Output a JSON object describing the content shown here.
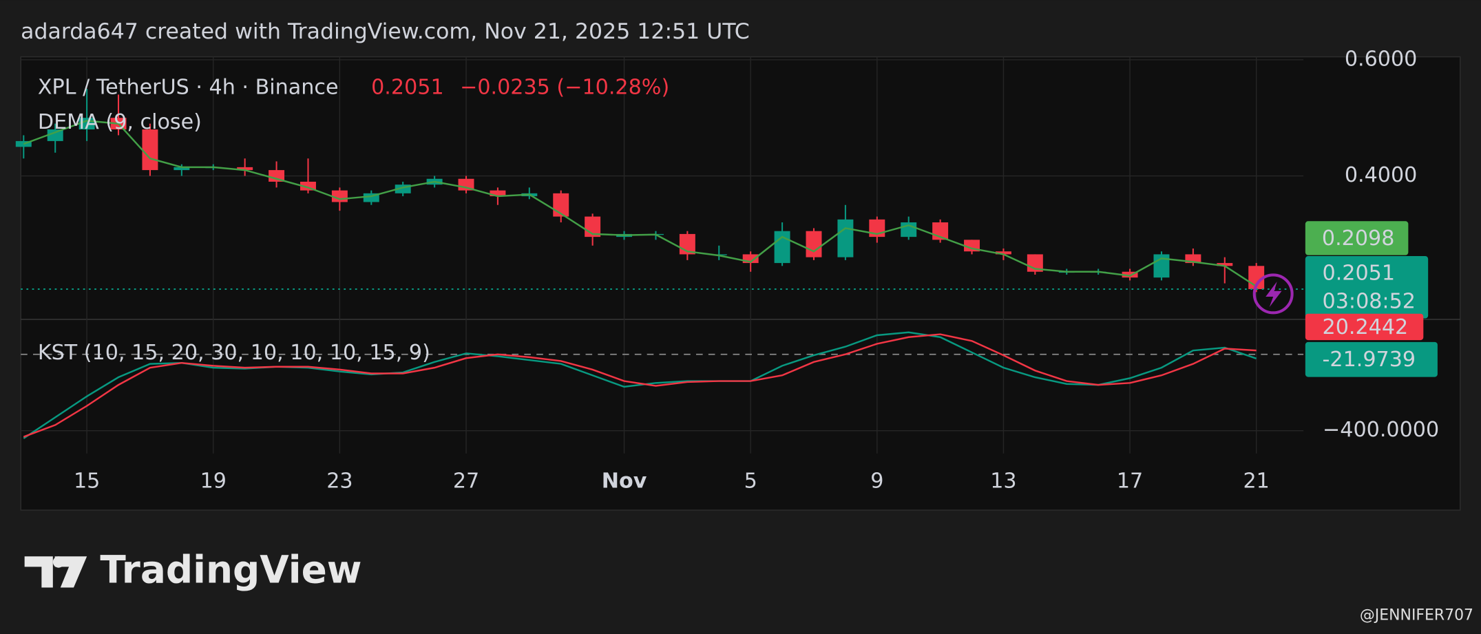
{
  "header": "adarda647 created with TradingView.com, Nov 21, 2025 12:51 UTC",
  "logo": "TradingView",
  "watermark": "@JENNIFER707",
  "chart_data": [
    {
      "type": "candlestick",
      "title": "XPL / TetherUS · 4h · Binance",
      "change": "−0.0235 (−10.28%)",
      "countdown": "03:08:52",
      "x": [
        13,
        14,
        15,
        16,
        17,
        18,
        19,
        20,
        21,
        22,
        23,
        24,
        25,
        26,
        27,
        28,
        29,
        30,
        31,
        32,
        33,
        34,
        35,
        36,
        37,
        38,
        39,
        40,
        41,
        42,
        43,
        44,
        45,
        46,
        47,
        48,
        49,
        50,
        51,
        52
      ],
      "open": [
        0.45,
        0.46,
        0.48,
        0.5,
        0.48,
        0.41,
        0.415,
        0.415,
        0.41,
        0.39,
        0.375,
        0.355,
        0.37,
        0.385,
        0.395,
        0.375,
        0.365,
        0.37,
        0.33,
        0.295,
        0.3,
        0.3,
        0.265,
        0.265,
        0.25,
        0.305,
        0.26,
        0.325,
        0.295,
        0.32,
        0.29,
        0.27,
        0.265,
        0.235,
        0.235,
        0.235,
        0.225,
        0.265,
        0.25,
        0.245
      ],
      "high": [
        0.47,
        0.49,
        0.55,
        0.54,
        0.49,
        0.42,
        0.42,
        0.43,
        0.425,
        0.43,
        0.38,
        0.375,
        0.39,
        0.4,
        0.4,
        0.38,
        0.38,
        0.375,
        0.335,
        0.305,
        0.305,
        0.305,
        0.28,
        0.27,
        0.32,
        0.31,
        0.35,
        0.33,
        0.33,
        0.325,
        0.29,
        0.275,
        0.265,
        0.24,
        0.24,
        0.24,
        0.27,
        0.275,
        0.26,
        0.25
      ],
      "low": [
        0.43,
        0.44,
        0.46,
        0.47,
        0.4,
        0.4,
        0.41,
        0.4,
        0.38,
        0.37,
        0.34,
        0.35,
        0.365,
        0.38,
        0.37,
        0.35,
        0.36,
        0.32,
        0.28,
        0.29,
        0.29,
        0.255,
        0.255,
        0.235,
        0.245,
        0.255,
        0.255,
        0.285,
        0.29,
        0.285,
        0.265,
        0.255,
        0.23,
        0.23,
        0.23,
        0.22,
        0.22,
        0.245,
        0.215,
        0.2
      ],
      "close": [
        0.46,
        0.48,
        0.5,
        0.48,
        0.41,
        0.415,
        0.415,
        0.41,
        0.39,
        0.375,
        0.355,
        0.37,
        0.385,
        0.395,
        0.375,
        0.365,
        0.37,
        0.33,
        0.295,
        0.3,
        0.3,
        0.265,
        0.265,
        0.25,
        0.305,
        0.26,
        0.325,
        0.295,
        0.32,
        0.29,
        0.27,
        0.265,
        0.235,
        0.235,
        0.235,
        0.225,
        0.265,
        0.25,
        0.245,
        0.2051
      ],
      "up_color": "#089981",
      "down_color": "#f23645",
      "overlay": {
        "name": "DEMA (9, close)",
        "color": "#43a047",
        "values": [
          0.455,
          0.475,
          0.495,
          0.49,
          0.43,
          0.415,
          0.415,
          0.41,
          0.395,
          0.38,
          0.36,
          0.365,
          0.38,
          0.39,
          0.38,
          0.365,
          0.368,
          0.335,
          0.3,
          0.298,
          0.299,
          0.27,
          0.263,
          0.252,
          0.295,
          0.27,
          0.31,
          0.3,
          0.315,
          0.295,
          0.275,
          0.265,
          0.24,
          0.235,
          0.235,
          0.228,
          0.258,
          0.252,
          0.245,
          0.2098
        ]
      },
      "xlim": [
        12.91,
        53.49
      ],
      "xticks": [
        {
          "value": 15,
          "label": "15"
        },
        {
          "value": 19,
          "label": "19"
        },
        {
          "value": 23,
          "label": "23"
        },
        {
          "value": 27,
          "label": "27"
        },
        {
          "value": 32,
          "label": "Nov"
        },
        {
          "value": 36,
          "label": "5"
        },
        {
          "value": 40,
          "label": "9"
        },
        {
          "value": 44,
          "label": "13"
        },
        {
          "value": 48,
          "label": "17"
        },
        {
          "value": 52,
          "label": "21"
        }
      ],
      "ylim": [
        0.153,
        0.605
      ],
      "yticks": [
        {
          "value": 0.6,
          "label": "0.6000"
        },
        {
          "value": 0.4,
          "label": "0.4000"
        }
      ],
      "grid": true
    },
    {
      "type": "line",
      "title": "KST (10, 15, 20, 30, 10, 10, 10, 15, 9)",
      "series": [
        {
          "color": "#089981",
          "values": [
            -440,
            -330,
            -220,
            -120,
            -50,
            -45,
            -70,
            -75,
            -65,
            -70,
            -90,
            -105,
            -95,
            -40,
            5,
            -10,
            -30,
            -50,
            -110,
            -170,
            -150,
            -140,
            -140,
            -140,
            -60,
            -5,
            40,
            100,
            115,
            90,
            10,
            -70,
            -120,
            -155,
            -160,
            -125,
            -70,
            20,
            35,
            -21.9739
          ]
        },
        {
          "color": "#f23645",
          "values": [
            -432,
            -370,
            -270,
            -160,
            -70,
            -45,
            -60,
            -70,
            -65,
            -65,
            -80,
            -100,
            -100,
            -70,
            -20,
            0,
            -15,
            -35,
            -80,
            -140,
            -165,
            -145,
            -140,
            -140,
            -110,
            -40,
            0,
            55,
            90,
            105,
            70,
            -5,
            -85,
            -140,
            -160,
            -150,
            -110,
            -50,
            30,
            20.2442
          ]
        }
      ],
      "hline": 0,
      "ylim": [
        -519,
        183
      ],
      "yticks": [
        {
          "value": -400,
          "label": "−400.0000"
        }
      ],
      "grid": true
    }
  ]
}
